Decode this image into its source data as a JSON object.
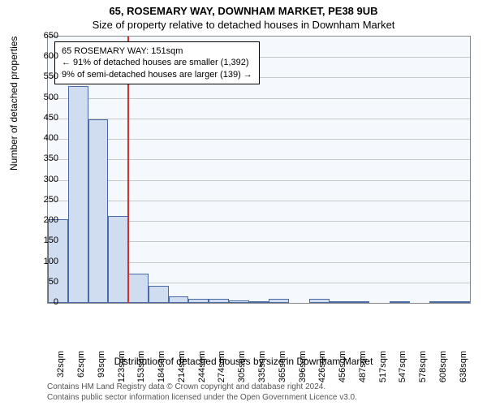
{
  "title": {
    "main": "65, ROSEMARY WAY, DOWNHAM MARKET, PE38 9UB",
    "sub": "Size of property relative to detached houses in Downham Market"
  },
  "chart": {
    "type": "histogram",
    "y": {
      "label": "Number of detached properties",
      "min": 0,
      "max": 650,
      "step": 50,
      "ticks": [
        0,
        50,
        100,
        150,
        200,
        250,
        300,
        350,
        400,
        450,
        500,
        550,
        600,
        650
      ]
    },
    "x": {
      "label": "Distribution of detached houses by size in Downham Market",
      "ticks": [
        "32sqm",
        "62sqm",
        "93sqm",
        "123sqm",
        "153sqm",
        "184sqm",
        "214sqm",
        "244sqm",
        "274sqm",
        "305sqm",
        "335sqm",
        "365sqm",
        "396sqm",
        "426sqm",
        "456sqm",
        "487sqm",
        "517sqm",
        "547sqm",
        "578sqm",
        "608sqm",
        "638sqm"
      ]
    },
    "bars": {
      "values": [
        205,
        530,
        448,
        212,
        72,
        42,
        15,
        10,
        10,
        5,
        2,
        10,
        0,
        10,
        2,
        2,
        0,
        2,
        0,
        2,
        2
      ],
      "fill": "#d0dcf0",
      "stroke": "#4a6aa5"
    },
    "reference": {
      "value_sqm": 151,
      "bin_index": 4,
      "color": "#d03030"
    },
    "background_color": "#f5f8fc",
    "grid_color": "#c8c8c8"
  },
  "annotation": {
    "line1": "65 ROSEMARY WAY: 151sqm",
    "line2": "← 91% of detached houses are smaller (1,392)",
    "line3": "9% of semi-detached houses are larger (139) →"
  },
  "footer": {
    "line1": "Contains HM Land Registry data © Crown copyright and database right 2024.",
    "line2": "Contains public sector information licensed under the Open Government Licence v3.0."
  }
}
